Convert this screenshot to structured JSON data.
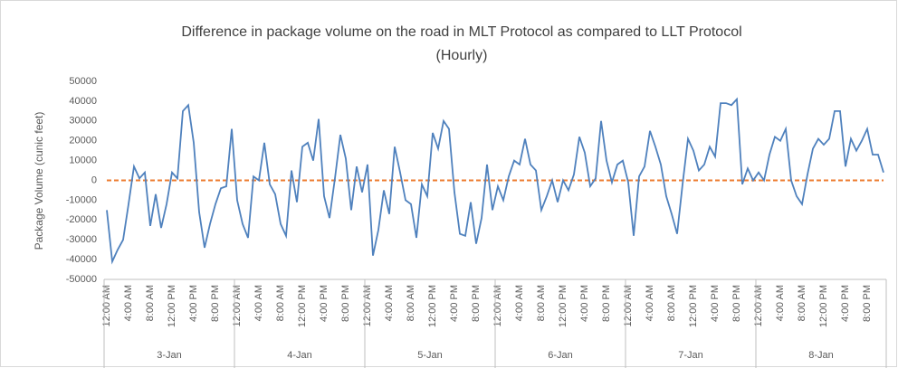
{
  "chart_data": {
    "type": "line",
    "title": [
      "Difference in package volume on the road in MLT Protocol as compared to LLT Protocol",
      "(Hourly)"
    ],
    "y_label": "Package Volume (cunic feet)",
    "categories": [
      "12:00 AM",
      null,
      null,
      null,
      "4:00 AM",
      null,
      null,
      null,
      "8:00 AM",
      null,
      null,
      null,
      "12:00 PM",
      null,
      null,
      null,
      "4:00 PM",
      null,
      null,
      null,
      "8:00 PM",
      null,
      null,
      null,
      "12:00 AM",
      null,
      null,
      null,
      "4:00 AM",
      null,
      null,
      null,
      "8:00 AM",
      null,
      null,
      null,
      "12:00 PM",
      null,
      null,
      null,
      "4:00 PM",
      null,
      null,
      null,
      "8:00 PM",
      null,
      null,
      null,
      "12:00 AM",
      null,
      null,
      null,
      "4:00 AM",
      null,
      null,
      null,
      "8:00 AM",
      null,
      null,
      null,
      "12:00 PM",
      null,
      null,
      null,
      "4:00 PM",
      null,
      null,
      null,
      "8:00 PM",
      null,
      null,
      null,
      "12:00 AM",
      null,
      null,
      null,
      "4:00 AM",
      null,
      null,
      null,
      "8:00 AM",
      null,
      null,
      null,
      "12:00 PM",
      null,
      null,
      null,
      "4:00 PM",
      null,
      null,
      null,
      "8:00 PM",
      null,
      null,
      null,
      "12:00 AM",
      null,
      null,
      null,
      "4:00 AM",
      null,
      null,
      null,
      "8:00 AM",
      null,
      null,
      null,
      "12:00 PM",
      null,
      null,
      null,
      "4:00 PM",
      null,
      null,
      null,
      "8:00 PM",
      null,
      null,
      null,
      "12:00 AM",
      null,
      null,
      null,
      "4:00 AM",
      null,
      null,
      null,
      "8:00 AM",
      null,
      null,
      null,
      "12:00 PM",
      null,
      null,
      null,
      "4:00 PM",
      null,
      null,
      null,
      "8:00 PM",
      null,
      null,
      null
    ],
    "days": [
      "3-Jan",
      "4-Jan",
      "5-Jan",
      "6-Jan",
      "7-Jan",
      "8-Jan"
    ],
    "series": [
      {
        "color": "#4f81bd",
        "dash": false,
        "values": [
          -15000,
          -41000,
          -35000,
          -30000,
          -12000,
          7000,
          1000,
          4000,
          -23000,
          -7000,
          -24000,
          -12000,
          4000,
          1000,
          35000,
          38000,
          19000,
          -16000,
          -34000,
          -22000,
          -12000,
          -4000,
          -3000,
          26000,
          -10000,
          -22000,
          -29000,
          2000,
          0,
          19000,
          -2000,
          -7000,
          -22000,
          -28000,
          5000,
          -11000,
          17000,
          19000,
          10000,
          31000,
          -8000,
          -19000,
          1000,
          23000,
          11000,
          -15000,
          7000,
          -6000,
          8000,
          -38000,
          -25000,
          -5000,
          -17000,
          17000,
          4000,
          -10000,
          -12000,
          -29000,
          -2000,
          -8000,
          24000,
          16000,
          30000,
          26000,
          -6000,
          -27000,
          -28000,
          -11000,
          -32000,
          -19000,
          8000,
          -15000,
          -3000,
          -10000,
          2000,
          10000,
          8000,
          21000,
          8000,
          5000,
          -15000,
          -8000,
          0,
          -11000,
          0,
          -5000,
          3000,
          22000,
          14000,
          -3000,
          1000,
          30000,
          10000,
          -1000,
          8000,
          10000,
          -1000,
          -28000,
          2000,
          7000,
          25000,
          17000,
          8000,
          -8000,
          -17000,
          -27000,
          -2000,
          21000,
          15000,
          5000,
          8000,
          17000,
          12000,
          39000,
          39000,
          38000,
          41000,
          -2000,
          6000,
          0,
          4000,
          0,
          13000,
          22000,
          20000,
          26000,
          0,
          -8000,
          -12000,
          3000,
          16000,
          21000,
          18000,
          21000,
          35000,
          35000,
          7000,
          21000,
          15000,
          20000,
          26000,
          13000,
          13000,
          4000
        ]
      },
      {
        "color": "#ed7d31",
        "dash": true,
        "values": [
          0,
          0,
          0,
          0,
          0,
          0,
          0,
          0,
          0,
          0,
          0,
          0,
          0,
          0,
          0,
          0,
          0,
          0,
          0,
          0,
          0,
          0,
          0,
          0,
          0,
          0,
          0,
          0,
          0,
          0,
          0,
          0,
          0,
          0,
          0,
          0,
          0,
          0,
          0,
          0,
          0,
          0,
          0,
          0,
          0,
          0,
          0,
          0,
          0,
          0,
          0,
          0,
          0,
          0,
          0,
          0,
          0,
          0,
          0,
          0,
          0,
          0,
          0,
          0,
          0,
          0,
          0,
          0,
          0,
          0,
          0,
          0,
          0,
          0,
          0,
          0,
          0,
          0,
          0,
          0,
          0,
          0,
          0,
          0,
          0,
          0,
          0,
          0,
          0,
          0,
          0,
          0,
          0,
          0,
          0,
          0,
          0,
          0,
          0,
          0,
          0,
          0,
          0,
          0,
          0,
          0,
          0,
          0,
          0,
          0,
          0,
          0,
          0,
          0,
          0,
          0,
          0,
          0,
          0,
          0,
          0,
          0,
          0,
          0,
          0,
          0,
          0,
          0,
          0,
          0,
          0,
          0,
          0,
          0,
          0,
          0,
          0,
          0,
          0,
          0,
          0,
          0,
          0,
          0
        ]
      }
    ],
    "ylim": [
      -50000,
      50000
    ],
    "yticks": [
      -50000,
      -40000,
      -30000,
      -20000,
      -10000,
      0,
      10000,
      20000,
      30000,
      40000,
      50000
    ],
    "grid": false
  }
}
